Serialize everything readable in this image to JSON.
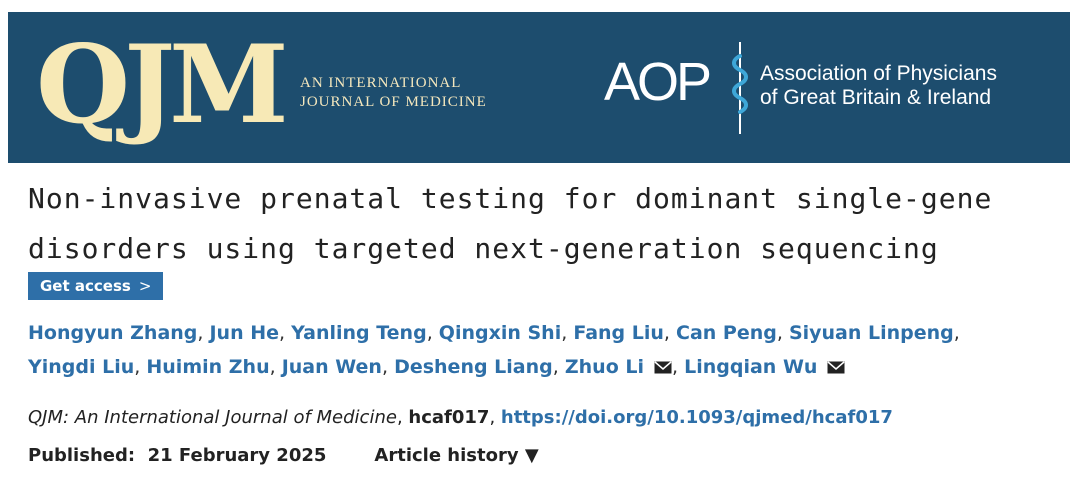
{
  "banner": {
    "logo_text": "QJM",
    "subtitle_line1": "AN INTERNATIONAL",
    "subtitle_line2": "JOURNAL OF MEDICINE",
    "aop_logo": "AOP",
    "assoc_line1": "Association of Physicians",
    "assoc_line2": "of Great Britain & Ireland",
    "background_color": "#1d4d6e",
    "logo_color": "#f7e9b6"
  },
  "article": {
    "title_line1": "Non-invasive prenatal testing for dominant single-gene",
    "title_line2": "disorders using targeted next-generation sequencing",
    "access_label": "Get access",
    "access_chevron": ">",
    "authors": [
      "Hongyun Zhang",
      "Jun He",
      "Yanling Teng",
      "Qingxin Shi",
      "Fang Liu",
      "Can Peng",
      "Siyuan Linpeng",
      "Yingdi Liu",
      "Huimin Zhu",
      "Juan Wen",
      "Desheng Liang",
      "Zhuo Li",
      "Lingqian Wu"
    ],
    "journal": "QJM: An International Journal of Medicine",
    "article_code": "hcaf017",
    "doi": "https://doi.org/10.1093/qjmed/hcaf017",
    "published_label": "Published:",
    "published_date": "21 February 2025",
    "history_label": "Article history",
    "history_arrow": "▼",
    "link_color": "#2e6fa8"
  }
}
